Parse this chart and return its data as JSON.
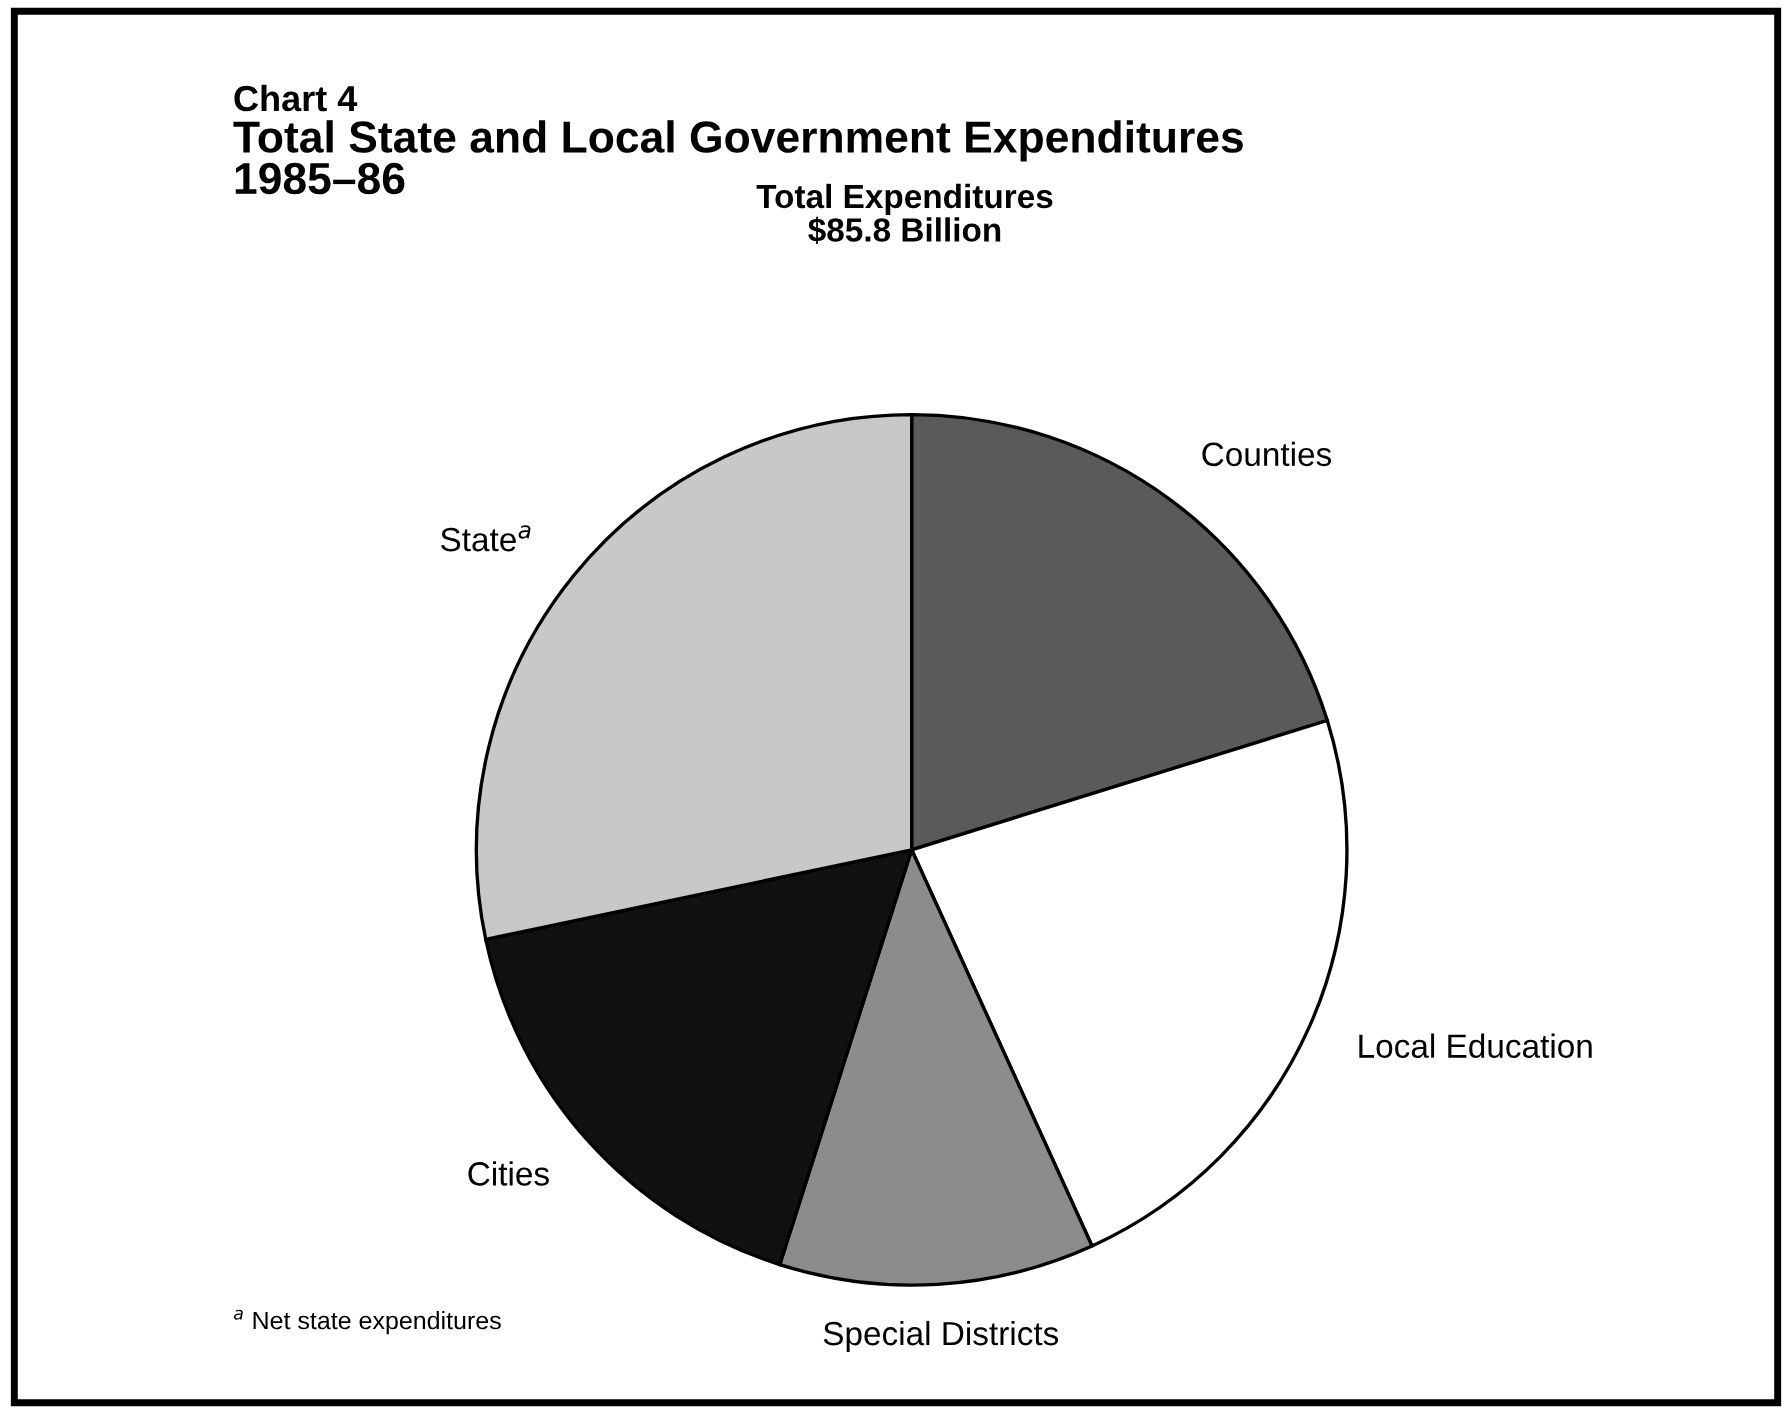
{
  "chart_data": {
    "type": "pie",
    "title": "Total State and Local Government Expenditures\n1985–86",
    "subtitle": "Total Expenditures\n$85.8 Billion",
    "categories": [
      "Counties",
      "Local Education",
      "Special Districts",
      "Cities",
      "State$^{a}$"
    ],
    "values": [
      20.2,
      23.0,
      11.7,
      16.8,
      28.3
    ],
    "colors": [
      "#5a5a5a",
      "#ffffff",
      "#8c8c8c",
      "#111111",
      "#c8c8c8"
    ],
    "annotations": [
      "Chart 4",
      "$^{a}$ Net state expenditures"
    ]
  }
}
